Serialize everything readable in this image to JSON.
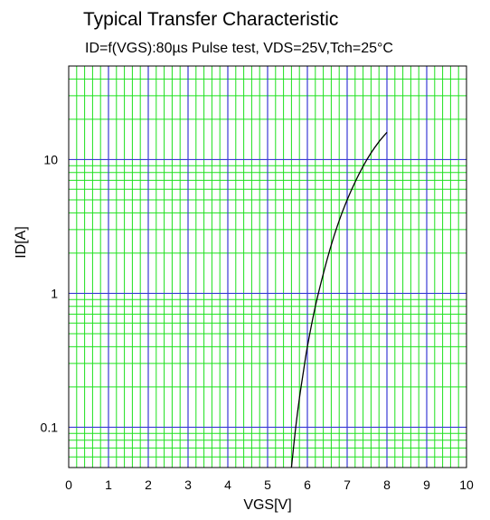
{
  "chart_data": {
    "type": "line",
    "title": "Typical Transfer Characteristic",
    "subtitle": "ID=f(VGS):80µs Pulse test, VDS=25V,Tch=25°C",
    "xlabel": "VGS[V]",
    "ylabel": "ID[A]",
    "xlim": [
      0,
      10
    ],
    "ylim": [
      0.05,
      50
    ],
    "yscale": "log",
    "x_ticks": [
      "0",
      "1",
      "2",
      "3",
      "4",
      "5",
      "6",
      "7",
      "8",
      "9",
      "10"
    ],
    "y_ticks": [
      {
        "value": 0.1,
        "label": "0.1"
      },
      {
        "value": 1,
        "label": "1"
      },
      {
        "value": 10,
        "label": "10"
      }
    ],
    "grid": true,
    "colors": {
      "major_grid": "#3a3ad6",
      "minor_grid": "#1ee01e",
      "curve": "#000000",
      "frame": "#000000"
    },
    "series": [
      {
        "x": [
          5.6,
          5.7,
          5.8,
          5.9,
          6.0,
          6.2,
          6.4,
          6.6,
          6.8,
          7.0,
          7.2,
          7.4,
          7.6,
          7.8,
          8.0
        ],
        "y": [
          0.05,
          0.096,
          0.165,
          0.26,
          0.4,
          0.8,
          1.4,
          2.3,
          3.5,
          5.0,
          6.8,
          8.9,
          11.2,
          13.6,
          16.0
        ]
      }
    ]
  }
}
